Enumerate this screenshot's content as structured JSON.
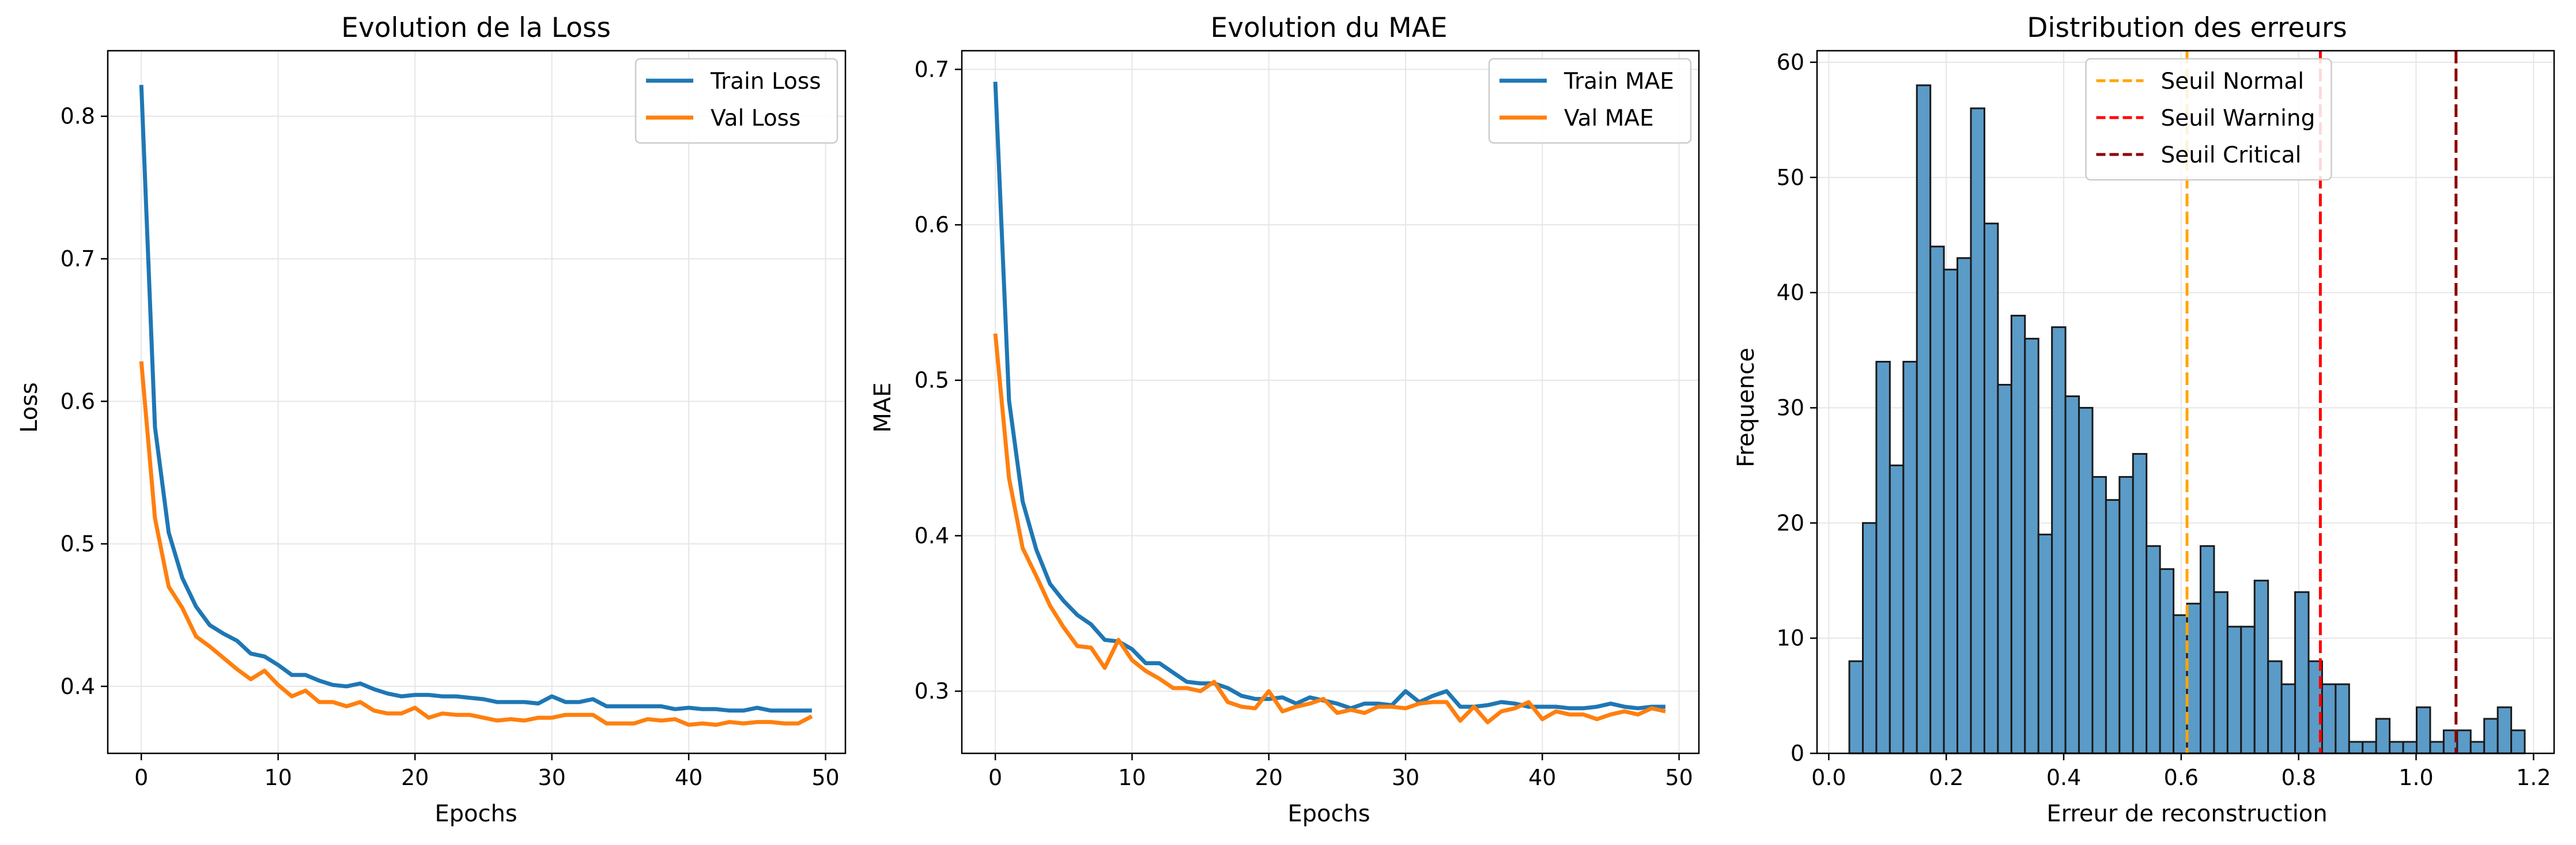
{
  "colors": {
    "train": "#1f77b4",
    "val": "#ff7f0e",
    "hist_fill": "#5b9bc8",
    "hist_edge": "#1a1a1a",
    "seuil_normal": "#ffa500",
    "seuil_warning": "#ff0000",
    "seuil_critical": "#8b0000",
    "grid": "#e6e6e6"
  },
  "chart_data": [
    {
      "type": "line",
      "title": "Evolution de la Loss",
      "xlabel": "Epochs",
      "ylabel": "Loss",
      "xlim": [
        -2.45,
        51.45
      ],
      "ylim": [
        0.353,
        0.846
      ],
      "xticks": [
        0,
        10,
        20,
        30,
        40,
        50
      ],
      "yticks": [
        0.4,
        0.5,
        0.6,
        0.7,
        0.8
      ],
      "ytick_labels": [
        "0.4",
        "0.5",
        "0.6",
        "0.7",
        "0.8"
      ],
      "grid": true,
      "legend_position": "upper right",
      "x": [
        0,
        1,
        2,
        3,
        4,
        5,
        6,
        7,
        8,
        9,
        10,
        11,
        12,
        13,
        14,
        15,
        16,
        17,
        18,
        19,
        20,
        21,
        22,
        23,
        24,
        25,
        26,
        27,
        28,
        29,
        30,
        31,
        32,
        33,
        34,
        35,
        36,
        37,
        38,
        39,
        40,
        41,
        42,
        43,
        44,
        45,
        46,
        47,
        48,
        49
      ],
      "series": [
        {
          "name": "Train Loss",
          "color_key": "train",
          "values": [
            0.822,
            0.582,
            0.508,
            0.476,
            0.456,
            0.443,
            0.437,
            0.432,
            0.423,
            0.421,
            0.415,
            0.408,
            0.408,
            0.404,
            0.401,
            0.4,
            0.402,
            0.398,
            0.395,
            0.393,
            0.394,
            0.394,
            0.393,
            0.393,
            0.392,
            0.391,
            0.389,
            0.389,
            0.389,
            0.388,
            0.393,
            0.389,
            0.389,
            0.391,
            0.386,
            0.386,
            0.386,
            0.386,
            0.386,
            0.384,
            0.385,
            0.384,
            0.384,
            0.383,
            0.383,
            0.385,
            0.383,
            0.383,
            0.383,
            0.383
          ]
        },
        {
          "name": "Val Loss",
          "color_key": "val",
          "values": [
            0.628,
            0.518,
            0.47,
            0.455,
            0.435,
            0.428,
            0.42,
            0.412,
            0.405,
            0.411,
            0.401,
            0.393,
            0.397,
            0.389,
            0.389,
            0.386,
            0.389,
            0.383,
            0.381,
            0.381,
            0.385,
            0.378,
            0.381,
            0.38,
            0.38,
            0.378,
            0.376,
            0.377,
            0.376,
            0.378,
            0.378,
            0.38,
            0.38,
            0.38,
            0.374,
            0.374,
            0.374,
            0.377,
            0.376,
            0.377,
            0.373,
            0.374,
            0.373,
            0.375,
            0.374,
            0.375,
            0.375,
            0.374,
            0.374,
            0.379
          ]
        }
      ]
    },
    {
      "type": "line",
      "title": "Evolution du MAE",
      "xlabel": "Epochs",
      "ylabel": "MAE",
      "xlim": [
        -2.45,
        51.45
      ],
      "ylim": [
        0.26,
        0.712
      ],
      "xticks": [
        0,
        10,
        20,
        30,
        40,
        50
      ],
      "yticks": [
        0.3,
        0.4,
        0.5,
        0.6,
        0.7
      ],
      "ytick_labels": [
        "0.3",
        "0.4",
        "0.5",
        "0.6",
        "0.7"
      ],
      "grid": true,
      "legend_position": "upper right",
      "x": [
        0,
        1,
        2,
        3,
        4,
        5,
        6,
        7,
        8,
        9,
        10,
        11,
        12,
        13,
        14,
        15,
        16,
        17,
        18,
        19,
        20,
        21,
        22,
        23,
        24,
        25,
        26,
        27,
        28,
        29,
        30,
        31,
        32,
        33,
        34,
        35,
        36,
        37,
        38,
        39,
        40,
        41,
        42,
        43,
        44,
        45,
        46,
        47,
        48,
        49
      ],
      "series": [
        {
          "name": "Train MAE",
          "color_key": "train",
          "values": [
            0.692,
            0.487,
            0.422,
            0.391,
            0.369,
            0.358,
            0.349,
            0.343,
            0.333,
            0.332,
            0.327,
            0.318,
            0.318,
            0.312,
            0.306,
            0.305,
            0.305,
            0.302,
            0.297,
            0.295,
            0.295,
            0.296,
            0.292,
            0.296,
            0.294,
            0.292,
            0.289,
            0.292,
            0.292,
            0.291,
            0.3,
            0.293,
            0.297,
            0.3,
            0.29,
            0.29,
            0.291,
            0.293,
            0.292,
            0.29,
            0.29,
            0.29,
            0.289,
            0.289,
            0.29,
            0.292,
            0.29,
            0.289,
            0.29,
            0.29
          ]
        },
        {
          "name": "Val MAE",
          "color_key": "val",
          "values": [
            0.53,
            0.437,
            0.392,
            0.374,
            0.355,
            0.341,
            0.329,
            0.328,
            0.315,
            0.333,
            0.32,
            0.313,
            0.308,
            0.302,
            0.302,
            0.3,
            0.306,
            0.293,
            0.29,
            0.289,
            0.3,
            0.287,
            0.29,
            0.292,
            0.295,
            0.286,
            0.288,
            0.286,
            0.29,
            0.29,
            0.289,
            0.292,
            0.293,
            0.293,
            0.281,
            0.29,
            0.28,
            0.287,
            0.289,
            0.293,
            0.282,
            0.287,
            0.285,
            0.285,
            0.282,
            0.285,
            0.287,
            0.285,
            0.289,
            0.287
          ]
        }
      ]
    },
    {
      "type": "histogram",
      "title": "Distribution des erreurs",
      "xlabel": "Erreur de reconstruction",
      "ylabel": "Frequence",
      "xlim": [
        -0.02,
        1.235
      ],
      "ylim": [
        0,
        61
      ],
      "xticks": [
        0.0,
        0.2,
        0.4,
        0.6,
        0.8,
        1.0,
        1.2
      ],
      "xtick_labels": [
        "0.0",
        "0.2",
        "0.4",
        "0.6",
        "0.8",
        "1.0",
        "1.2"
      ],
      "yticks": [
        0,
        10,
        20,
        30,
        40,
        50,
        60
      ],
      "grid": true,
      "legend_position": "upper center",
      "bin_start": 0.035,
      "bin_end": 1.185,
      "counts": [
        8,
        20,
        34,
        25,
        34,
        58,
        44,
        42,
        43,
        56,
        46,
        32,
        38,
        36,
        19,
        37,
        31,
        30,
        24,
        22,
        24,
        26,
        18,
        16,
        12,
        13,
        18,
        14,
        11,
        11,
        15,
        8,
        6,
        14,
        8,
        6,
        6,
        1,
        1,
        3,
        1,
        1,
        4,
        1,
        2,
        2,
        1,
        3,
        4,
        2
      ],
      "vlines": [
        {
          "name": "Seuil Normal",
          "x": 0.61,
          "color_key": "seuil_normal"
        },
        {
          "name": "Seuil Warning",
          "x": 0.837,
          "color_key": "seuil_warning"
        },
        {
          "name": "Seuil Critical",
          "x": 1.068,
          "color_key": "seuil_critical"
        }
      ]
    }
  ]
}
